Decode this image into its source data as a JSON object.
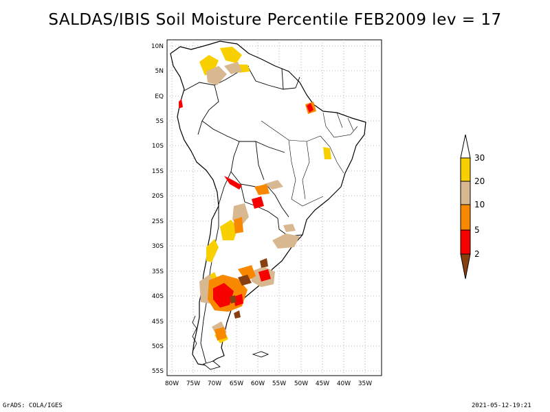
{
  "title": "SALDAS/IBIS Soil Moisture Percentile FEB2009 lev = 17",
  "map": {
    "lat_ticks": [
      "10N",
      "5N",
      "EQ",
      "5S",
      "10S",
      "15S",
      "20S",
      "25S",
      "30S",
      "35S",
      "40S",
      "45S",
      "50S",
      "55S"
    ],
    "lon_ticks": [
      "80W",
      "75W",
      "70W",
      "65W",
      "60W",
      "55W",
      "50W",
      "45W",
      "40W",
      "35W"
    ]
  },
  "legend": {
    "labels": [
      "30",
      "20",
      "10",
      "5",
      "2"
    ],
    "colors": {
      "above_30": "#ffffff",
      "20_30": "#f8d000",
      "10_20": "#d8b890",
      "5_10": "#f88800",
      "2_5": "#f80000",
      "below_2": "#884010"
    }
  },
  "footer": {
    "left": "GrADS: COLA/IGES",
    "right": "2021-05-12-19:21"
  }
}
